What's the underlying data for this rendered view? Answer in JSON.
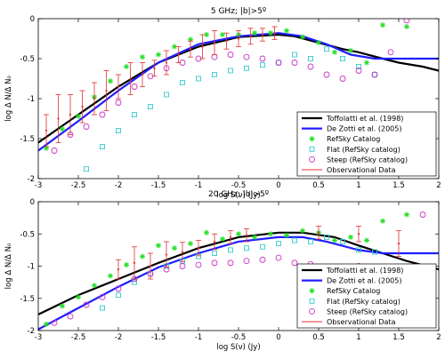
{
  "figure": {
    "colors": {
      "toffolatti": "#000000",
      "dezotti": "#1f1fff",
      "refsky": "#22dd22",
      "flat": "#33cccc",
      "steep": "#cc33cc",
      "obs": "#e03030"
    }
  },
  "chart_data": [
    {
      "type": "line",
      "title": "5 GHz; |b|>5º",
      "xlabel": "log S(ν) (Jy)",
      "ylabel": "log Δ N/Δ N₀",
      "xlim": [
        -3,
        2
      ],
      "ylim": [
        -2,
        0
      ],
      "xticks": [
        -3,
        -2.5,
        -2,
        -1.5,
        -1,
        -0.5,
        0,
        0.5,
        1,
        1.5,
        2
      ],
      "yticks": [
        -2,
        -1.5,
        -1,
        -0.5,
        0
      ],
      "legend": {
        "position": "lower-right",
        "entries": [
          "Toffolatti et al. (1998)",
          "De Zotti et al. (2005)",
          "RefSky Catalog",
          "Flat (RefSky catalog)",
          "Steep (RefSky catalog)",
          "Observational Data"
        ]
      },
      "series": [
        {
          "name": "Toffolatti et al. (1998)",
          "kind": "line",
          "x": [
            -3,
            -2.5,
            -2,
            -1.5,
            -1,
            -0.5,
            0,
            0.2,
            0.5,
            0.8,
            1,
            1.3,
            1.5,
            1.8,
            2
          ],
          "y": [
            -1.55,
            -1.2,
            -0.85,
            -0.55,
            -0.35,
            -0.23,
            -0.2,
            -0.22,
            -0.3,
            -0.38,
            -0.42,
            -0.5,
            -0.55,
            -0.6,
            -0.65
          ]
        },
        {
          "name": "De Zotti et al. (2005)",
          "kind": "line",
          "x": [
            -3,
            -2.5,
            -2,
            -1.5,
            -1,
            -0.5,
            0,
            0.3,
            0.6,
            0.9,
            1.2,
            1.5,
            2
          ],
          "y": [
            -1.65,
            -1.28,
            -0.9,
            -0.55,
            -0.32,
            -0.22,
            -0.18,
            -0.22,
            -0.32,
            -0.45,
            -0.5,
            -0.5,
            -0.5
          ]
        },
        {
          "name": "RefSky Catalog",
          "kind": "marker",
          "x": [
            -2.9,
            -2.7,
            -2.5,
            -2.3,
            -2.1,
            -1.9,
            -1.7,
            -1.5,
            -1.3,
            -1.1,
            -0.9,
            -0.7,
            -0.5,
            -0.3,
            -0.1,
            0.1,
            0.3,
            0.5,
            0.7,
            0.9,
            1.1,
            1.3,
            1.6
          ],
          "y": [
            -1.62,
            -1.38,
            -1.22,
            -0.98,
            -0.78,
            -0.6,
            -0.48,
            -0.45,
            -0.35,
            -0.26,
            -0.2,
            -0.2,
            -0.2,
            -0.18,
            -0.18,
            -0.15,
            -0.23,
            -0.3,
            -0.42,
            -0.4,
            -0.55,
            -0.08,
            -0.1
          ]
        },
        {
          "name": "Flat (RefSky catalog)",
          "kind": "marker",
          "x": [
            -2.4,
            -2.2,
            -2.0,
            -1.8,
            -1.6,
            -1.4,
            -1.2,
            -1.0,
            -0.8,
            -0.6,
            -0.4,
            -0.2,
            0.0,
            0.2,
            0.4,
            0.6,
            0.8,
            1.0,
            1.2
          ],
          "y": [
            -1.88,
            -1.6,
            -1.4,
            -1.2,
            -1.1,
            -0.95,
            -0.8,
            -0.75,
            -0.7,
            -0.65,
            -0.62,
            -0.58,
            -0.55,
            -0.45,
            -0.5,
            -0.38,
            -0.5,
            -0.6,
            -0.7
          ]
        },
        {
          "name": "Steep (RefSky catalog)",
          "kind": "marker",
          "x": [
            -2.8,
            -2.6,
            -2.4,
            -2.2,
            -2.0,
            -1.8,
            -1.6,
            -1.4,
            -1.2,
            -1.0,
            -0.8,
            -0.6,
            -0.4,
            -0.2,
            0.0,
            0.2,
            0.4,
            0.6,
            0.8,
            1.0,
            1.2,
            1.4,
            1.6
          ],
          "y": [
            -1.65,
            -1.45,
            -1.35,
            -1.2,
            -1.05,
            -0.85,
            -0.72,
            -0.62,
            -0.55,
            -0.5,
            -0.48,
            -0.45,
            -0.48,
            -0.5,
            -0.55,
            -0.55,
            -0.6,
            -0.7,
            -0.75,
            -0.65,
            -0.7,
            -0.42,
            -0.02
          ]
        },
        {
          "name": "Observational Data",
          "kind": "errorbar",
          "x": [
            -2.9,
            -2.75,
            -2.6,
            -2.45,
            -2.3,
            -2.15,
            -2.0,
            -1.85,
            -1.7,
            -1.55,
            -1.4,
            -1.25,
            -1.1,
            -0.95,
            -0.8,
            -0.65,
            -0.5,
            -0.35,
            -0.2,
            -0.05
          ],
          "y": [
            -1.4,
            -1.25,
            -1.2,
            -1.1,
            -1.0,
            -0.9,
            -0.85,
            -0.75,
            -0.7,
            -0.62,
            -0.55,
            -0.45,
            -0.38,
            -0.35,
            -0.3,
            -0.28,
            -0.25,
            -0.22,
            -0.2,
            -0.18
          ],
          "err": [
            0.2,
            0.3,
            0.25,
            0.2,
            0.2,
            0.25,
            0.15,
            0.2,
            0.15,
            0.1,
            0.15,
            0.1,
            0.1,
            0.15,
            0.15,
            0.1,
            0.1,
            0.1,
            0.08,
            0.08
          ]
        }
      ]
    },
    {
      "type": "line",
      "title": "20 GHz; |b|>5º",
      "xlabel": "log S(ν) (Jy)",
      "ylabel": "log Δ N/Δ N₀",
      "xlim": [
        -3,
        2
      ],
      "ylim": [
        -2,
        0
      ],
      "xticks": [
        -3,
        -2.5,
        -2,
        -1.5,
        -1,
        -0.5,
        0,
        0.5,
        1,
        1.5,
        2
      ],
      "yticks": [
        -2,
        -1.5,
        -1,
        -0.5,
        0
      ],
      "legend": {
        "position": "lower-right",
        "entries": [
          "Toffolatti et al. (1998)",
          "De Zotti et al. (2005)",
          "RefSky Catalog",
          "Flat (RefSky catalog)",
          "Steep (RefSky catalog)",
          "Observational Data"
        ]
      },
      "series": [
        {
          "name": "Toffolatti et al. (1998)",
          "kind": "line",
          "x": [
            -3,
            -2.5,
            -2,
            -1.5,
            -1,
            -0.5,
            0,
            0.3,
            0.7,
            1,
            1.3,
            1.6,
            2
          ],
          "y": [
            -1.75,
            -1.45,
            -1.2,
            -0.95,
            -0.72,
            -0.55,
            -0.48,
            -0.48,
            -0.55,
            -0.68,
            -0.8,
            -0.92,
            -1.05
          ]
        },
        {
          "name": "De Zotti et al. (2005)",
          "kind": "line",
          "x": [
            -3,
            -2.5,
            -2,
            -1.5,
            -1,
            -0.5,
            0,
            0.3,
            0.6,
            1,
            1.3,
            1.6,
            2
          ],
          "y": [
            -1.98,
            -1.65,
            -1.32,
            -1.02,
            -0.8,
            -0.62,
            -0.55,
            -0.55,
            -0.62,
            -0.75,
            -0.8,
            -0.8,
            -0.8
          ]
        },
        {
          "name": "RefSky Catalog",
          "kind": "marker",
          "x": [
            -2.9,
            -2.7,
            -2.5,
            -2.3,
            -2.1,
            -1.9,
            -1.7,
            -1.5,
            -1.3,
            -1.1,
            -0.9,
            -0.7,
            -0.5,
            -0.3,
            -0.1,
            0.1,
            0.3,
            0.5,
            0.7,
            0.9,
            1.1,
            1.3,
            1.6
          ],
          "y": [
            -1.9,
            -1.62,
            -1.48,
            -1.3,
            -1.15,
            -0.98,
            -0.85,
            -0.68,
            -0.72,
            -0.65,
            -0.48,
            -0.58,
            -0.5,
            -0.55,
            -0.5,
            -0.52,
            -0.45,
            -0.48,
            -0.6,
            -0.55,
            -0.6,
            -0.3,
            -0.2
          ]
        },
        {
          "name": "Flat (RefSky catalog)",
          "kind": "marker",
          "x": [
            -2.2,
            -2.0,
            -1.8,
            -1.6,
            -1.4,
            -1.2,
            -1.0,
            -0.8,
            -0.6,
            -0.4,
            -0.2,
            0.0,
            0.2,
            0.4,
            0.6,
            0.8,
            1.0,
            1.2
          ],
          "y": [
            -1.65,
            -1.45,
            -1.25,
            -1.12,
            -1.0,
            -0.92,
            -0.85,
            -0.8,
            -0.75,
            -0.72,
            -0.7,
            -0.65,
            -0.6,
            -0.62,
            -0.55,
            -0.62,
            -0.75,
            -0.78
          ]
        },
        {
          "name": "Steep (RefSky catalog)",
          "kind": "marker",
          "x": [
            -2.8,
            -2.6,
            -2.4,
            -2.2,
            -2.0,
            -1.8,
            -1.6,
            -1.4,
            -1.2,
            -1.0,
            -0.8,
            -0.6,
            -0.4,
            -0.2,
            0.0,
            0.2,
            0.4,
            0.6,
            0.8,
            1.0,
            1.4,
            1.8
          ],
          "y": [
            -1.88,
            -1.78,
            -1.6,
            -1.48,
            -1.35,
            -1.2,
            -1.12,
            -1.05,
            -1.0,
            -0.98,
            -0.95,
            -0.95,
            -0.92,
            -0.9,
            -0.87,
            -0.95,
            -0.97,
            -1.05,
            -1.1,
            -1.0,
            -1.3,
            -0.2
          ]
        },
        {
          "name": "Observational Data",
          "kind": "errorbar",
          "x": [
            -2.0,
            -1.8,
            -1.6,
            -1.4,
            -1.2,
            -1.0,
            -0.8,
            -0.6,
            -0.4,
            0.5,
            1.0,
            1.5
          ],
          "y": [
            -1.05,
            -0.95,
            -1.0,
            -0.82,
            -0.78,
            -0.72,
            -0.62,
            -0.55,
            -0.52,
            -0.48,
            -0.5,
            -0.65
          ],
          "err": [
            0.15,
            0.25,
            0.2,
            0.2,
            0.15,
            0.12,
            0.12,
            0.1,
            0.1,
            0.1,
            0.12,
            0.2
          ]
        }
      ]
    }
  ]
}
